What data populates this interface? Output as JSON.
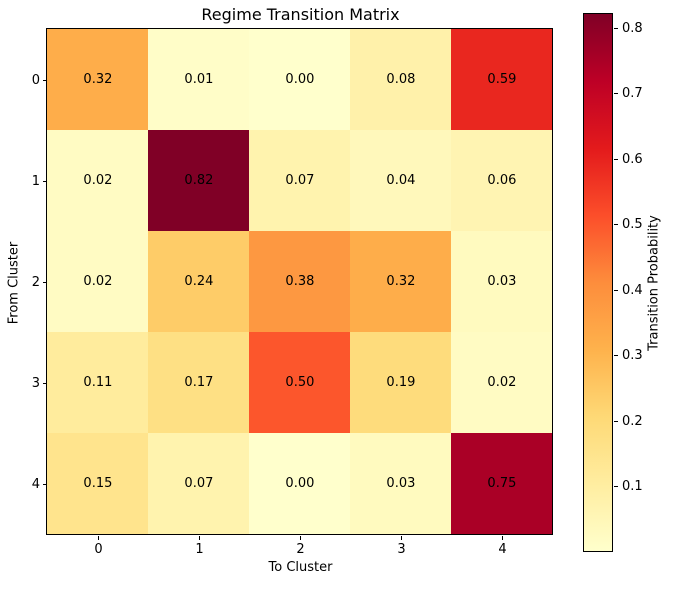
{
  "chart_data": {
    "type": "heatmap",
    "title": "Regime Transition Matrix",
    "xlabel": "To Cluster",
    "ylabel": "From Cluster",
    "colorbar_label": "Transition Probability",
    "x_tick_labels": [
      "0",
      "1",
      "2",
      "3",
      "4"
    ],
    "y_tick_labels": [
      "0",
      "1",
      "2",
      "3",
      "4"
    ],
    "rows": [
      [
        0.32,
        0.01,
        0.0,
        0.08,
        0.59
      ],
      [
        0.02,
        0.82,
        0.07,
        0.04,
        0.06
      ],
      [
        0.02,
        0.24,
        0.38,
        0.32,
        0.03
      ],
      [
        0.11,
        0.17,
        0.5,
        0.19,
        0.02
      ],
      [
        0.15,
        0.07,
        0.0,
        0.03,
        0.75
      ]
    ],
    "value_format_decimals": 2,
    "vmin": 0,
    "vmax": 0.82,
    "colorbar_ticks": [
      0.8,
      0.7,
      0.6,
      0.5,
      0.4,
      0.3,
      0.2,
      0.1
    ],
    "colormap_name": "YlOrRd",
    "colormap_anchors": [
      "#ffffcc",
      "#ffeda0",
      "#fed976",
      "#feb24c",
      "#fd8d3c",
      "#fc4e2a",
      "#e31a1c",
      "#bd0026",
      "#800026"
    ],
    "annotation_color": "#000000",
    "background_color": "#ffffff",
    "grid": false,
    "legend_position": "colorbar-right"
  }
}
